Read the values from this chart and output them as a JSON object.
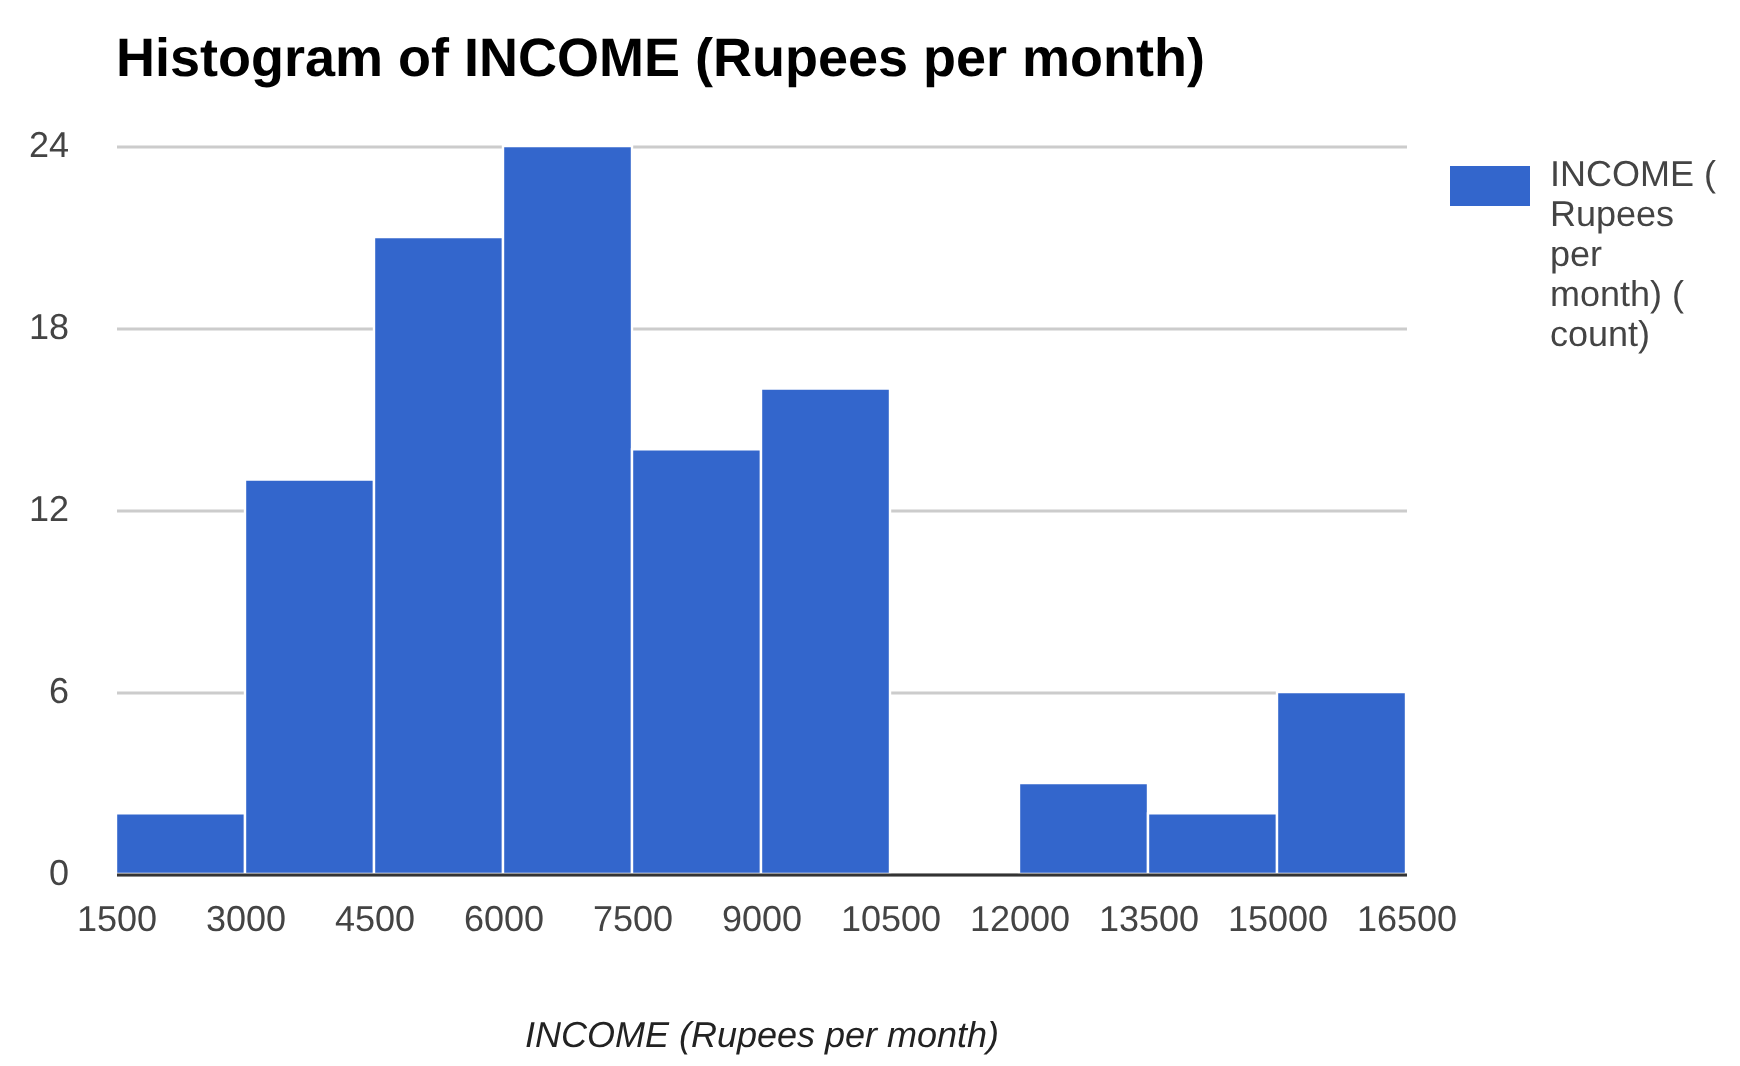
{
  "chart_data": {
    "type": "histogram",
    "title": "Histogram of INCOME (Rupees per month)",
    "xlabel": "INCOME (Rupees per month)",
    "bins": [
      1500,
      3000,
      4500,
      6000,
      7500,
      9000,
      10500,
      12000,
      13500,
      15000,
      16500
    ],
    "series": [
      {
        "name": "INCOME (Rupees per month) (count)",
        "color": "#3366cc",
        "values": [
          2,
          13,
          21,
          24,
          14,
          16,
          0,
          3,
          2,
          6
        ]
      }
    ],
    "xlim": [
      1500,
      16500
    ],
    "xticks": [
      1500,
      3000,
      4500,
      6000,
      7500,
      9000,
      10500,
      12000,
      13500,
      15000,
      16500
    ],
    "ylim": [
      0,
      24
    ],
    "yticks": [
      0,
      6,
      12,
      18,
      24
    ],
    "grid": "y",
    "legend": "top right"
  }
}
